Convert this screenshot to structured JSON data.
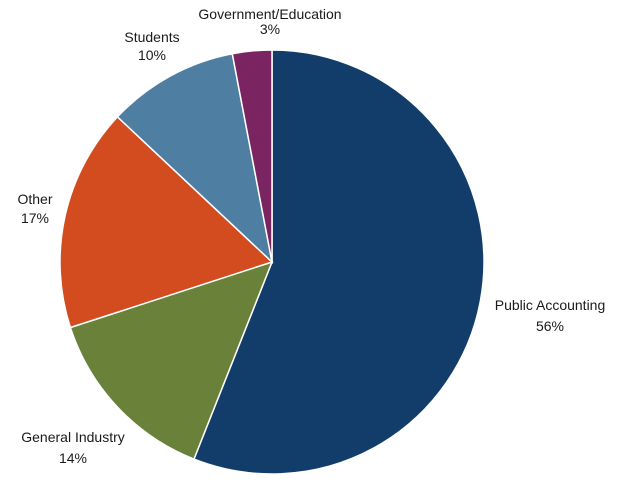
{
  "chart_data": {
    "type": "pie",
    "title": "",
    "slices": [
      {
        "label": "Public Accounting",
        "value": 56,
        "value_label": "56%",
        "color": "#123D6B"
      },
      {
        "label": "General Industry",
        "value": 14,
        "value_label": "14%",
        "color": "#6A813A"
      },
      {
        "label": "Other",
        "value": 17,
        "value_label": "17%",
        "color": "#D24C1F"
      },
      {
        "label": "Students",
        "value": 10,
        "value_label": "10%",
        "color": "#4E7FA3"
      },
      {
        "label": "Government/Education",
        "value": 3,
        "value_label": "3%",
        "color": "#7A2462"
      }
    ],
    "start_angle": "12 o'clock",
    "direction": "clockwise",
    "legend": "none",
    "labels": "outside"
  }
}
